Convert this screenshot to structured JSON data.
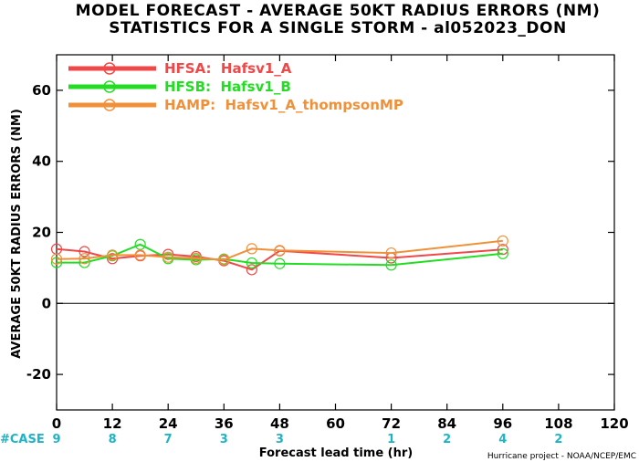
{
  "chart_data": {
    "type": "line",
    "title": "MODEL FORECAST - AVERAGE 50KT RADIUS ERRORS (NM)",
    "subtitle": "STATISTICS FOR A SINGLE STORM - al052023_DON",
    "xlabel": "Forecast lead time (hr)",
    "ylabel": "AVERAGE 50KT RADIUS ERRORS (NM)",
    "xlim": [
      0,
      120
    ],
    "ylim": [
      -30,
      70
    ],
    "xticks": [
      0,
      12,
      24,
      36,
      48,
      60,
      72,
      84,
      96,
      108,
      120
    ],
    "yticks": [
      -20,
      0,
      20,
      40,
      60
    ],
    "legend_position": "top-left",
    "series": [
      {
        "name": "HFSA:  Hafsv1_A",
        "color": "#f04848",
        "x": [
          0,
          6,
          12,
          18,
          24,
          30,
          36,
          42,
          48,
          72,
          96
        ],
        "y": [
          15.3,
          14.6,
          12.6,
          13.4,
          13.8,
          13.2,
          12.0,
          9.5,
          14.8,
          12.8,
          15.2
        ]
      },
      {
        "name": "HFSB:  Hafsv1_B",
        "color": "#22dd22",
        "x": [
          0,
          6,
          12,
          18,
          24,
          30,
          36,
          42,
          48,
          72,
          96
        ],
        "y": [
          11.5,
          11.5,
          13.4,
          16.6,
          12.6,
          12.3,
          12.5,
          11.4,
          11.2,
          10.8,
          14.0
        ]
      },
      {
        "name": "HAMP:  Hafsv1_A_thompsonMP",
        "color": "#f0913a",
        "x": [
          0,
          6,
          12,
          18,
          24,
          30,
          36,
          42,
          48,
          72,
          96
        ],
        "y": [
          12.5,
          12.6,
          13.6,
          13.6,
          13.0,
          12.7,
          12.3,
          15.4,
          14.9,
          14.2,
          17.6
        ]
      }
    ],
    "case_label": "#CASE",
    "cases": [
      {
        "x": 0,
        "n": "9"
      },
      {
        "x": 12,
        "n": "8"
      },
      {
        "x": 24,
        "n": "7"
      },
      {
        "x": 36,
        "n": "3"
      },
      {
        "x": 48,
        "n": "3"
      },
      {
        "x": 72,
        "n": "1"
      },
      {
        "x": 84,
        "n": "2"
      },
      {
        "x": 96,
        "n": "4"
      },
      {
        "x": 108,
        "n": "2"
      }
    ],
    "zero_line": true
  },
  "credit": "Hurricane project - NOAA/NCEP/EMC",
  "colors": {
    "case_text": "#1fb3c7"
  }
}
